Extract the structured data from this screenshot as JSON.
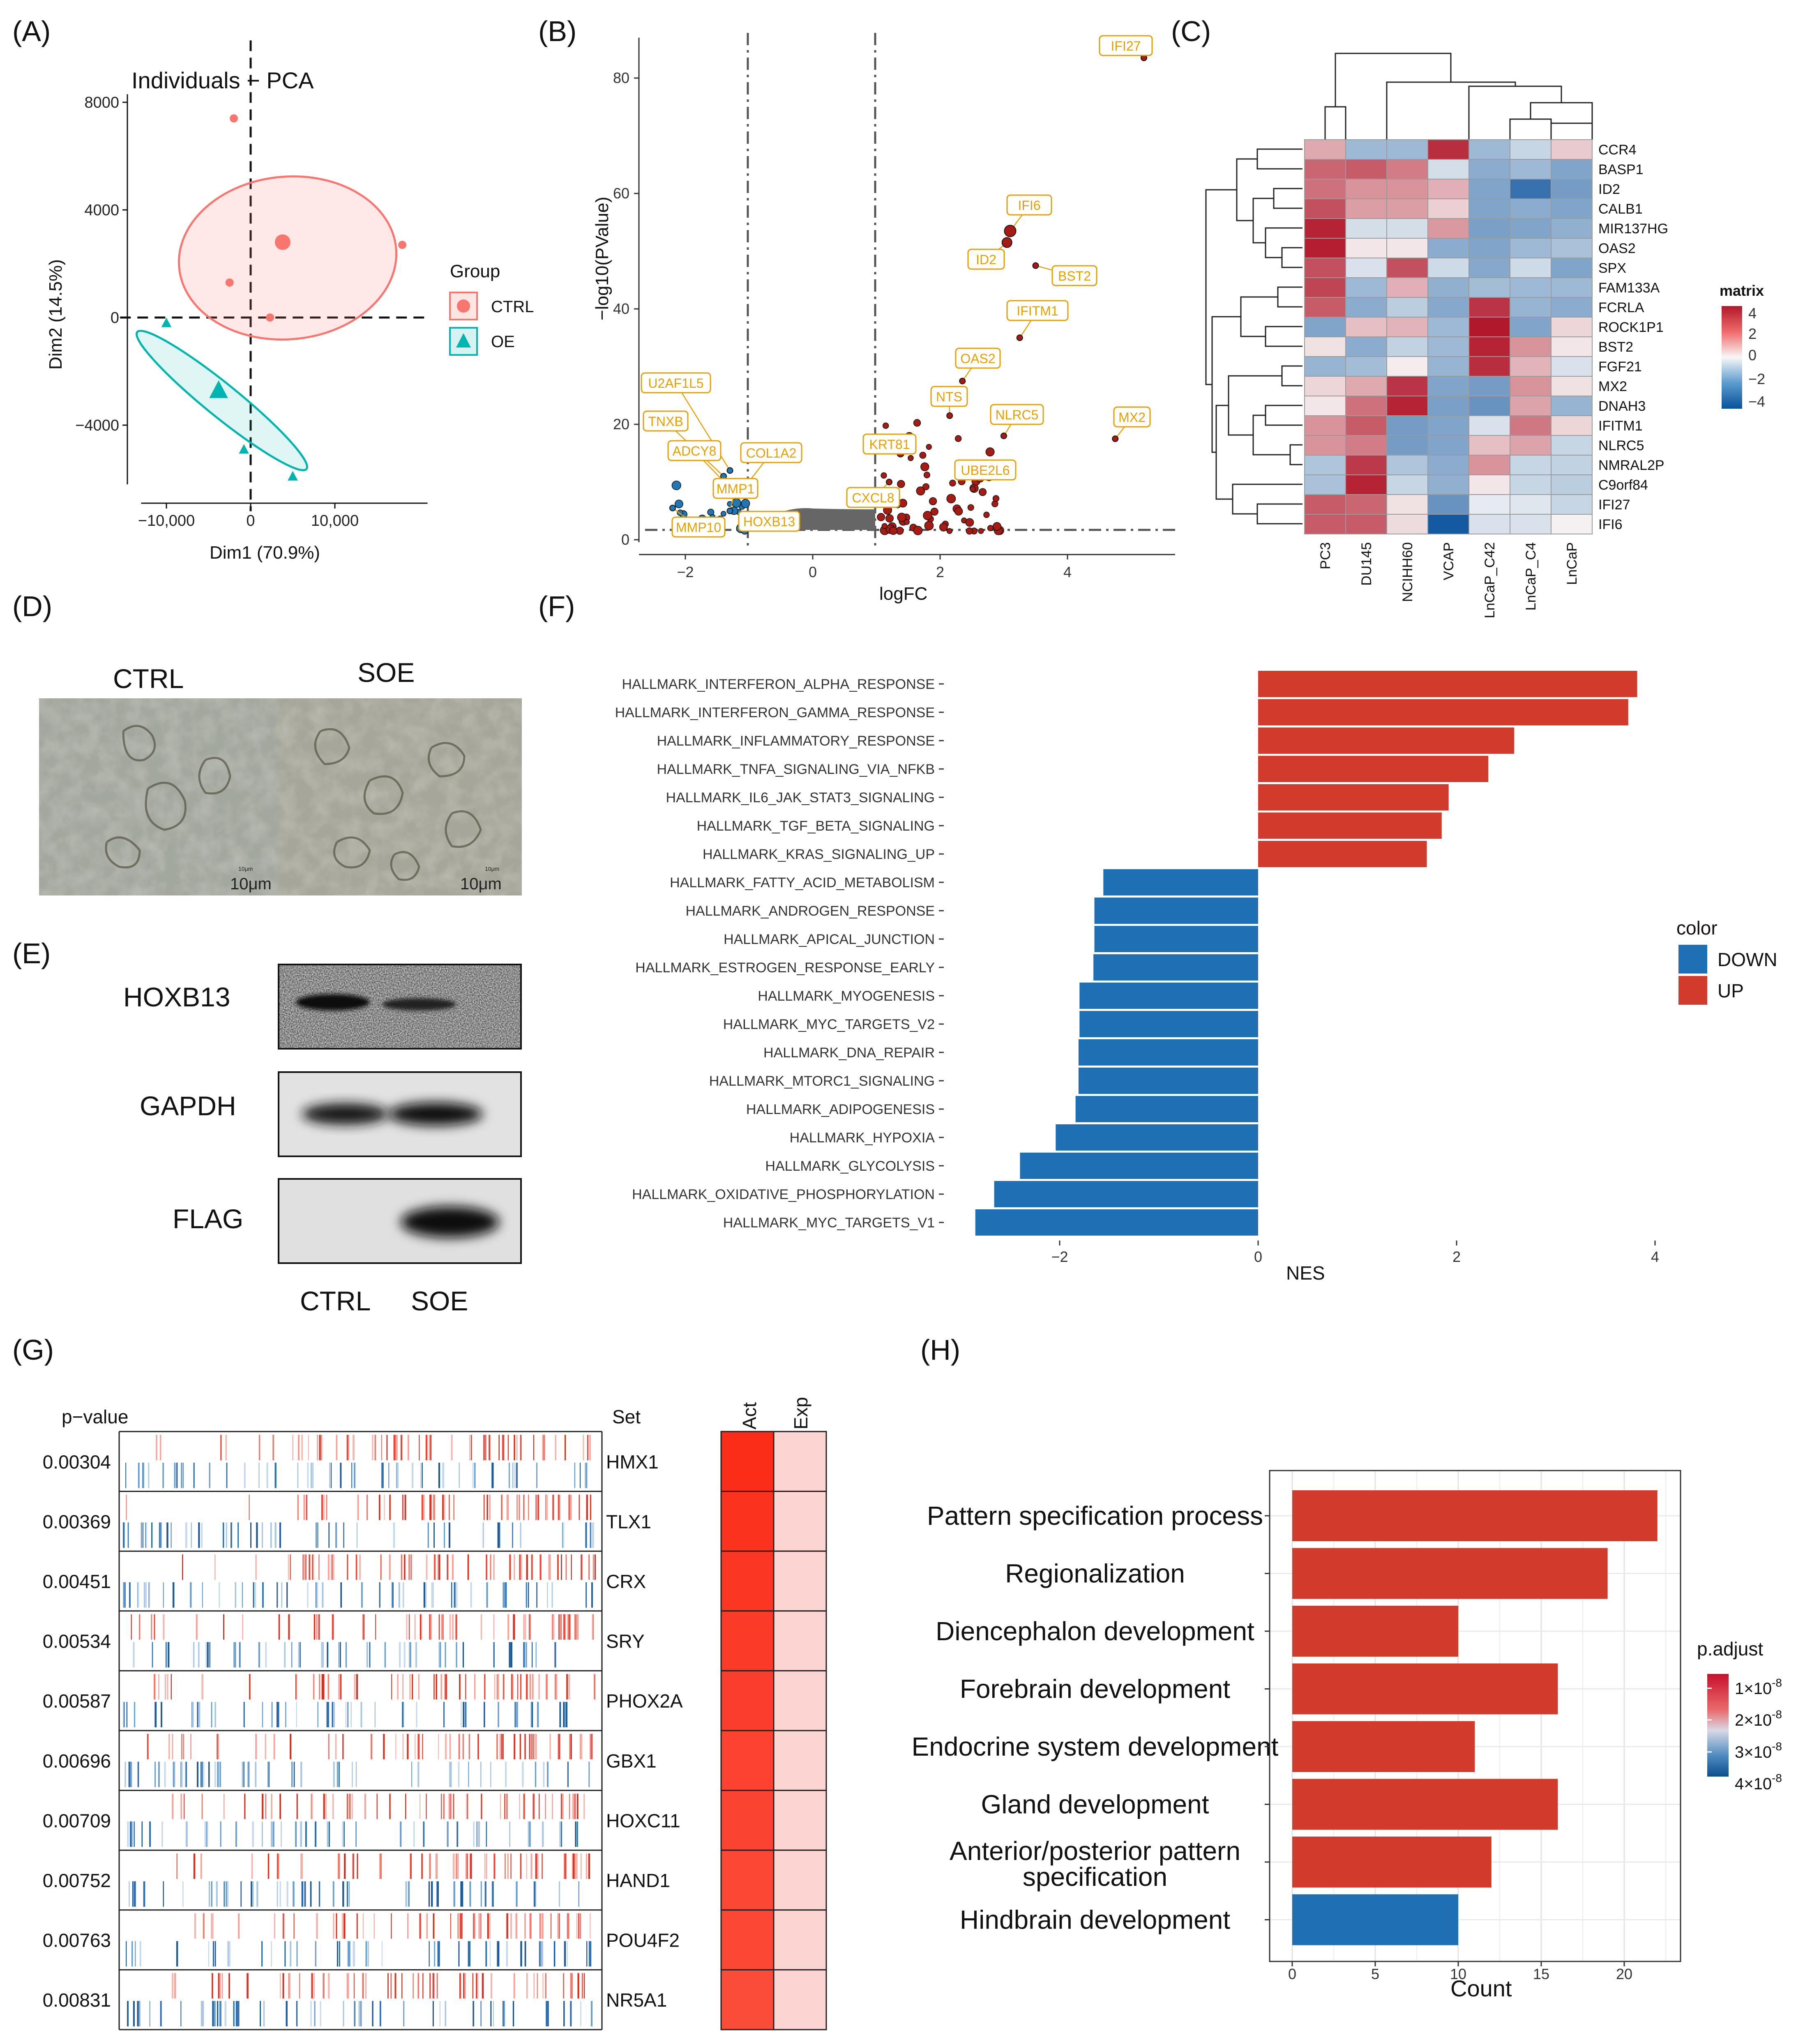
{
  "panels": {
    "A": "(A)",
    "B": "(B)",
    "C": "(C)",
    "D": "(D)",
    "E": "(E)",
    "F": "(F)",
    "G": "(G)",
    "H": "(H)"
  },
  "colors": {
    "ctrl": "#f8766d",
    "oe": "#00b4b0",
    "up": "#d13b2c",
    "down": "#1f6fb4",
    "volcano_up": "#a61c14",
    "volcano_down": "#1f78b4",
    "label_orange": "#e69f00"
  },
  "pca": {
    "title": "Individuals − PCA",
    "xlabel": "Dim1 (70.9%)",
    "ylabel": "Dim2 (14.5%)",
    "xticks": [
      "−10,000",
      "0",
      "10,000"
    ],
    "yticks": [
      "8000",
      "4000",
      "0",
      "−4000"
    ],
    "legend_title": "Group",
    "legend_items": [
      "CTRL",
      "OE"
    ],
    "ctrl_points": [
      [
        -2000,
        7400
      ],
      [
        -2500,
        1300
      ],
      [
        3800,
        2800
      ],
      [
        18000,
        2700
      ],
      [
        2300,
        0
      ]
    ],
    "ctrl_centroid": [
      3800,
      2800
    ],
    "oe_points": [
      [
        -10000,
        -200
      ],
      [
        -3800,
        -2700
      ],
      [
        -800,
        -4900
      ],
      [
        5000,
        -5900
      ]
    ],
    "oe_centroid": [
      -3800,
      -2700
    ]
  },
  "chart_data": [
    {
      "panel": "A",
      "type": "scatter",
      "title": "Individuals − PCA",
      "xlabel": "Dim1 (70.9%)",
      "ylabel": "Dim2 (14.5%)",
      "series": [
        {
          "name": "CTRL",
          "points": [
            [
              -2000,
              7400
            ],
            [
              -2500,
              1300
            ],
            [
              3800,
              2800
            ],
            [
              18000,
              2700
            ],
            [
              2300,
              0
            ]
          ]
        },
        {
          "name": "OE",
          "points": [
            [
              -10000,
              -200
            ],
            [
              -3800,
              -2700
            ],
            [
              -800,
              -4900
            ],
            [
              5000,
              -5900
            ]
          ]
        }
      ]
    },
    {
      "panel": "B",
      "type": "scatter",
      "xlabel": "logFC",
      "ylabel": "−log10(PValue)",
      "xlim": [
        -2.5,
        5.2
      ],
      "ylim": [
        0,
        87
      ]
    },
    {
      "panel": "C",
      "type": "heatmap",
      "legend_title": "matrix"
    },
    {
      "panel": "F",
      "type": "bar",
      "xlabel": "NES",
      "legend_title": "color"
    },
    {
      "panel": "H",
      "type": "bar",
      "xlabel": "Count",
      "legend_title": "p.adjust"
    }
  ],
  "volcano": {
    "xlabel": "logFC",
    "ylabel": "−log10(PValue)",
    "xticks": [
      "−2",
      "0",
      "2",
      "4"
    ],
    "yticks": [
      "0",
      "20",
      "40",
      "60",
      "80"
    ],
    "labeled_points": [
      {
        "gene": "IFI27",
        "x": 5.2,
        "y": 83.5,
        "r": 7
      },
      {
        "gene": "IFI6",
        "x": 3.1,
        "y": 53.5,
        "r": 14
      },
      {
        "gene": "ID2",
        "x": 3.05,
        "y": 51.5,
        "r": 12
      },
      {
        "gene": "BST2",
        "x": 3.5,
        "y": 47.5,
        "r": 7
      },
      {
        "gene": "IFITM1",
        "x": 3.25,
        "y": 35,
        "r": 7
      },
      {
        "gene": "OAS2",
        "x": 2.35,
        "y": 27.5,
        "r": 7
      },
      {
        "gene": "NTS",
        "x": 2.15,
        "y": 21.5,
        "r": 7
      },
      {
        "gene": "NLRC5",
        "x": 3.0,
        "y": 18,
        "r": 7
      },
      {
        "gene": "MX2",
        "x": 4.75,
        "y": 17.5,
        "r": 7
      },
      {
        "gene": "KRT81",
        "x": 1.35,
        "y": 16,
        "r": 7
      },
      {
        "gene": "UBE2L6",
        "x": 2.4,
        "y": 12.5,
        "r": 7
      },
      {
        "gene": "CXCL8",
        "x": 1.2,
        "y": 10,
        "r": 7
      },
      {
        "gene": "U2AF1L5",
        "x": -1.3,
        "y": 12,
        "r": 7
      },
      {
        "gene": "TNXB",
        "x": -1.4,
        "y": 11,
        "r": 7
      },
      {
        "gene": "ADCY8",
        "x": -1.3,
        "y": 9,
        "r": 7
      },
      {
        "gene": "COL1A2",
        "x": -1.15,
        "y": 8,
        "r": 7
      },
      {
        "gene": "MMP1",
        "x": -1.3,
        "y": 5,
        "r": 7
      },
      {
        "gene": "MMP10",
        "x": -2.2,
        "y": 5.5,
        "r": 7
      },
      {
        "gene": "HOXB13",
        "x": -1.1,
        "y": 3.5,
        "r": 7
      }
    ]
  },
  "heatmap": {
    "rows": [
      "CCR4",
      "BASP1",
      "ID2",
      "CALB1",
      "MIR137HG",
      "OAS2",
      "SPX",
      "FAM133A",
      "FCRLA",
      "ROCK1P1",
      "BST2",
      "FGF21",
      "MX2",
      "DNAH3",
      "IFITM1",
      "NLRC5",
      "NMRAL2P",
      "C9orf84",
      "IFI27",
      "IFI6"
    ],
    "cols": [
      "PC3",
      "DU145",
      "NCIHH60",
      "VCAP",
      "LnCaP_C42",
      "LnCaP_C4",
      "LnCaP"
    ],
    "values": [
      [
        1.4,
        -1.5,
        -1.5,
        3.6,
        -1.5,
        -0.8,
        0.8
      ],
      [
        2.6,
        2.8,
        2.2,
        -0.6,
        -1.8,
        -1.5,
        -2.0
      ],
      [
        2.4,
        1.8,
        1.8,
        1.3,
        -2.0,
        -3.2,
        -2.2
      ],
      [
        3.0,
        1.6,
        1.6,
        0.7,
        -2.0,
        -1.8,
        -2.0
      ],
      [
        3.8,
        -0.6,
        -0.6,
        1.7,
        -2.1,
        -2.0,
        -1.7
      ],
      [
        3.9,
        0.3,
        0.3,
        -1.8,
        -2.0,
        -1.5,
        -1.3
      ],
      [
        3.0,
        -0.5,
        3.0,
        -0.7,
        -1.9,
        -0.7,
        -2.0
      ],
      [
        3.2,
        -1.5,
        1.3,
        -1.7,
        -1.4,
        -1.5,
        -1.5
      ],
      [
        2.8,
        -1.8,
        -1.0,
        -1.9,
        3.5,
        -1.6,
        -1.8
      ],
      [
        -2.0,
        1.0,
        1.2,
        -1.5,
        4.0,
        -2.0,
        0.6
      ],
      [
        0.4,
        -1.8,
        -0.9,
        -1.5,
        3.8,
        1.8,
        0.3
      ],
      [
        -1.6,
        -1.4,
        0.2,
        -1.6,
        3.6,
        1.2,
        -0.5
      ],
      [
        0.6,
        1.4,
        3.5,
        -2.0,
        -2.2,
        1.8,
        0.4
      ],
      [
        0.3,
        2.4,
        3.8,
        -2.1,
        -2.4,
        1.5,
        -1.6
      ],
      [
        1.8,
        2.8,
        -2.2,
        -2.0,
        -0.5,
        2.3,
        0.6
      ],
      [
        1.8,
        2.2,
        -2.2,
        -2.0,
        1.0,
        1.5,
        -0.8
      ],
      [
        -1.2,
        3.4,
        -1.2,
        -1.8,
        1.8,
        -0.8,
        -0.9
      ],
      [
        -1.3,
        3.8,
        -0.8,
        -1.7,
        0.3,
        -0.8,
        -1.0
      ],
      [
        2.8,
        2.6,
        0.4,
        -2.4,
        -0.3,
        -0.4,
        -0.8
      ],
      [
        2.8,
        2.8,
        0.5,
        -3.8,
        -0.5,
        -0.5,
        0.1
      ]
    ],
    "legend_title": "matrix",
    "legend_ticks": [
      "4",
      "2",
      "0",
      "−2",
      "−4"
    ]
  },
  "images": {
    "ctrl_label": "CTRL",
    "soe_label": "SOE",
    "scale_small_1": "10μm",
    "scale_big_1": "10μm",
    "scale_small_2": "10μm",
    "scale_big_2": "10μm"
  },
  "western": {
    "bands": [
      "HOXB13",
      "GAPDH",
      "FLAG"
    ],
    "lanes": [
      "CTRL",
      "SOE"
    ]
  },
  "gsea_bar": {
    "xlabel": "NES",
    "xticks": [
      "−2",
      "0",
      "2",
      "4"
    ],
    "legend_title": "color",
    "legend_items": [
      "DOWN",
      "UP"
    ],
    "bars": [
      {
        "label": "HALLMARK_INTERFERON_ALPHA_RESPONSE",
        "nes": 3.82
      },
      {
        "label": "HALLMARK_INTERFERON_GAMMA_RESPONSE",
        "nes": 3.73
      },
      {
        "label": "HALLMARK_INFLAMMATORY_RESPONSE",
        "nes": 2.58
      },
      {
        "label": "HALLMARK_TNFA_SIGNALING_VIA_NFKB",
        "nes": 2.32
      },
      {
        "label": "HALLMARK_IL6_JAK_STAT3_SIGNALING",
        "nes": 1.92
      },
      {
        "label": "HALLMARK_TGF_BETA_SIGNALING",
        "nes": 1.85
      },
      {
        "label": "HALLMARK_KRAS_SIGNALING_UP",
        "nes": 1.7
      },
      {
        "label": "HALLMARK_FATTY_ACID_METABOLISM",
        "nes": -1.56
      },
      {
        "label": "HALLMARK_ANDROGEN_RESPONSE",
        "nes": -1.65
      },
      {
        "label": "HALLMARK_APICAL_JUNCTION",
        "nes": -1.65
      },
      {
        "label": "HALLMARK_ESTROGEN_RESPONSE_EARLY",
        "nes": -1.66
      },
      {
        "label": "HALLMARK_MYOGENESIS",
        "nes": -1.8
      },
      {
        "label": "HALLMARK_MYC_TARGETS_V2",
        "nes": -1.8
      },
      {
        "label": "HALLMARK_DNA_REPAIR",
        "nes": -1.81
      },
      {
        "label": "HALLMARK_MTORC1_SIGNALING",
        "nes": -1.81
      },
      {
        "label": "HALLMARK_ADIPOGENESIS",
        "nes": -1.84
      },
      {
        "label": "HALLMARK_HYPOXIA",
        "nes": -2.04
      },
      {
        "label": "HALLMARK_GLYCOLYSIS",
        "nes": -2.4
      },
      {
        "label": "HALLMARK_OXIDATIVE_PHOSPHORYLATION",
        "nes": -2.66
      },
      {
        "label": "HALLMARK_MYC_TARGETS_V1",
        "nes": -2.85
      }
    ]
  },
  "tf_gsea": {
    "pvalue_header": "p−value",
    "set_header": "Set",
    "act_label": "Act",
    "exp_label": "Exp",
    "rows": [
      {
        "p": "0.00304",
        "set": "HMX1",
        "act": "#fb2d18"
      },
      {
        "p": "0.00369",
        "set": "TLX1",
        "act": "#fb321d"
      },
      {
        "p": "0.00451",
        "set": "CRX",
        "act": "#fb3622"
      },
      {
        "p": "0.00534",
        "set": "SRY",
        "act": "#fb3a27"
      },
      {
        "p": "0.00587",
        "set": "PHOX2A",
        "act": "#fb3e2b"
      },
      {
        "p": "0.00696",
        "set": "GBX1",
        "act": "#fb4330"
      },
      {
        "p": "0.00709",
        "set": "HOXC11",
        "act": "#fb4331"
      },
      {
        "p": "0.00752",
        "set": "HAND1",
        "act": "#fb4733"
      },
      {
        "p": "0.00763",
        "set": "POU4F2",
        "act": "#fb4734"
      },
      {
        "p": "0.00831",
        "set": "NR5A1",
        "act": "#fb4c39"
      }
    ]
  },
  "go_bar": {
    "xlabel": "Count",
    "xticks": [
      "0",
      "5",
      "10",
      "15",
      "20"
    ],
    "legend_title": "p.adjust",
    "legend_ticks": [
      "1×10",
      "2×10",
      "3×10",
      "4×10"
    ],
    "legend_exp": "-8",
    "bars": [
      {
        "label": "Pattern specification process",
        "count": 22,
        "color": "#d13b2c"
      },
      {
        "label": "Regionalization",
        "count": 19,
        "color": "#d13b2c"
      },
      {
        "label": "Diencephalon development",
        "count": 10,
        "color": "#d13b2c"
      },
      {
        "label": "Forebrain development",
        "count": 16,
        "color": "#d13b2c"
      },
      {
        "label": "Endocrine system development",
        "count": 11,
        "color": "#d13b2c"
      },
      {
        "label": "Gland development",
        "count": 16,
        "color": "#d13b2c"
      },
      {
        "label": "Anterior/posterior pattern specification",
        "label_line1": "Anterior/posterior pattern",
        "label_line2": "specification",
        "count": 12,
        "color": "#d13b2c"
      },
      {
        "label": "Hindbrain development",
        "count": 10,
        "color": "#1f6fb4"
      }
    ]
  }
}
